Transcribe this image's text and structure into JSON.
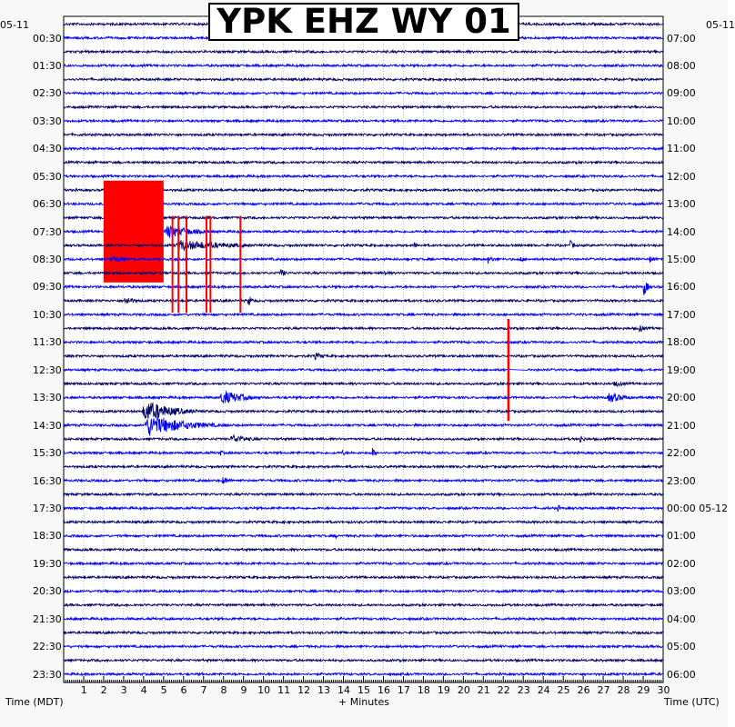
{
  "chart_data": {
    "type": "helicorder",
    "title": "YPK EHZ WY 01",
    "left_date": "05-11",
    "right_date": "05-11",
    "right_date_rollover": "05-12",
    "xlabel": "+ Minutes",
    "left_axis_label": "Time (MDT)",
    "right_axis_label": "Time (UTC)",
    "x_ticks": [
      1,
      2,
      3,
      4,
      5,
      6,
      7,
      8,
      9,
      10,
      11,
      12,
      13,
      14,
      15,
      16,
      17,
      18,
      19,
      20,
      21,
      22,
      23,
      24,
      25,
      26,
      27,
      28,
      29,
      30
    ],
    "x_range_minutes": [
      0,
      30
    ],
    "left_time_labels": [
      "00:30",
      "01:30",
      "02:30",
      "03:30",
      "04:30",
      "05:30",
      "06:30",
      "07:30",
      "08:30",
      "09:30",
      "10:30",
      "11:30",
      "12:30",
      "13:30",
      "14:30",
      "15:30",
      "16:30",
      "17:30",
      "18:30",
      "19:30",
      "20:30",
      "21:30",
      "22:30",
      "23:30"
    ],
    "right_time_labels": [
      "07:00",
      "08:00",
      "09:00",
      "10:00",
      "11:00",
      "12:00",
      "13:00",
      "14:00",
      "15:00",
      "16:00",
      "17:00",
      "18:00",
      "19:00",
      "20:00",
      "21:00",
      "22:00",
      "23:00",
      "00:00",
      "01:00",
      "02:00",
      "03:00",
      "04:00",
      "05:00",
      "06:00"
    ],
    "trace_count": 48,
    "trace_colors": [
      "#00006b",
      "#0000ff"
    ],
    "clip_color": "#ff0000",
    "events": [
      {
        "trace": 15,
        "minute": 2.0,
        "end": 5.0,
        "amp": 14,
        "clipped": true
      },
      {
        "trace": 15,
        "minute": 5.0,
        "end": 9.0,
        "amp": 9,
        "clipped": false
      },
      {
        "trace": 16,
        "minute": 5.5,
        "end": 13.0,
        "amp": 7,
        "clipped": false
      },
      {
        "trace": 16,
        "minute": 17.5,
        "end": 18.2,
        "amp": 5,
        "clipped": false
      },
      {
        "trace": 16,
        "minute": 25.3,
        "end": 26.0,
        "amp": 7,
        "clipped": false
      },
      {
        "trace": 17,
        "minute": 2.3,
        "end": 4.5,
        "amp": 6,
        "clipped": false
      },
      {
        "trace": 17,
        "minute": 21.2,
        "end": 22.0,
        "amp": 6,
        "clipped": false
      },
      {
        "trace": 17,
        "minute": 22.8,
        "end": 23.5,
        "amp": 5,
        "clipped": false
      },
      {
        "trace": 17,
        "minute": 29.3,
        "end": 30.0,
        "amp": 5,
        "clipped": false
      },
      {
        "trace": 18,
        "minute": 10.8,
        "end": 11.6,
        "amp": 6,
        "clipped": false
      },
      {
        "trace": 18,
        "minute": 16.0,
        "end": 16.6,
        "amp": 5,
        "clipped": false
      },
      {
        "trace": 19,
        "minute": 29.0,
        "end": 29.6,
        "amp": 12,
        "clipped": false
      },
      {
        "trace": 20,
        "minute": 3.0,
        "end": 4.5,
        "amp": 6,
        "clipped": false
      },
      {
        "trace": 20,
        "minute": 9.2,
        "end": 9.8,
        "amp": 9,
        "clipped": false
      },
      {
        "trace": 22,
        "minute": 28.8,
        "end": 29.4,
        "amp": 7,
        "clipped": false
      },
      {
        "trace": 24,
        "minute": 12.5,
        "end": 13.8,
        "amp": 5,
        "clipped": false
      },
      {
        "trace": 25,
        "minute": 22.2,
        "end": 23.2,
        "amp": 14,
        "clipped": true
      },
      {
        "trace": 26,
        "minute": 27.5,
        "end": 29.5,
        "amp": 4,
        "clipped": false
      },
      {
        "trace": 27,
        "minute": 7.8,
        "end": 11.0,
        "amp": 10,
        "clipped": false
      },
      {
        "trace": 27,
        "minute": 27.2,
        "end": 29.5,
        "amp": 7,
        "clipped": false
      },
      {
        "trace": 28,
        "minute": 3.9,
        "end": 8.0,
        "amp": 14,
        "clipped": false
      },
      {
        "trace": 29,
        "minute": 4.0,
        "end": 9.5,
        "amp": 14,
        "clipped": false
      },
      {
        "trace": 30,
        "minute": 8.3,
        "end": 11.0,
        "amp": 6,
        "clipped": false
      },
      {
        "trace": 30,
        "minute": 25.8,
        "end": 26.4,
        "amp": 7,
        "clipped": false
      },
      {
        "trace": 31,
        "minute": 7.8,
        "end": 8.4,
        "amp": 4,
        "clipped": false
      },
      {
        "trace": 31,
        "minute": 13.9,
        "end": 14.4,
        "amp": 5,
        "clipped": false
      },
      {
        "trace": 31,
        "minute": 15.4,
        "end": 15.9,
        "amp": 8,
        "clipped": false
      },
      {
        "trace": 32,
        "minute": 22.0,
        "end": 23.8,
        "amp": 2,
        "clipped": false
      },
      {
        "trace": 33,
        "minute": 7.9,
        "end": 9.2,
        "amp": 5,
        "clipped": false
      },
      {
        "trace": 35,
        "minute": 24.7,
        "end": 25.2,
        "amp": 5,
        "clipped": false
      },
      {
        "trace": 36,
        "minute": 11.0,
        "end": 11.4,
        "amp": 3,
        "clipped": false
      },
      {
        "trace": 37,
        "minute": 13.6,
        "end": 14.0,
        "amp": 4,
        "clipped": false
      },
      {
        "trace": 38,
        "minute": 23.7,
        "end": 24.1,
        "amp": 3,
        "clipped": false
      },
      {
        "trace": 47,
        "minute": 29.4,
        "end": 30.0,
        "amp": 3,
        "clipped": false
      }
    ]
  }
}
